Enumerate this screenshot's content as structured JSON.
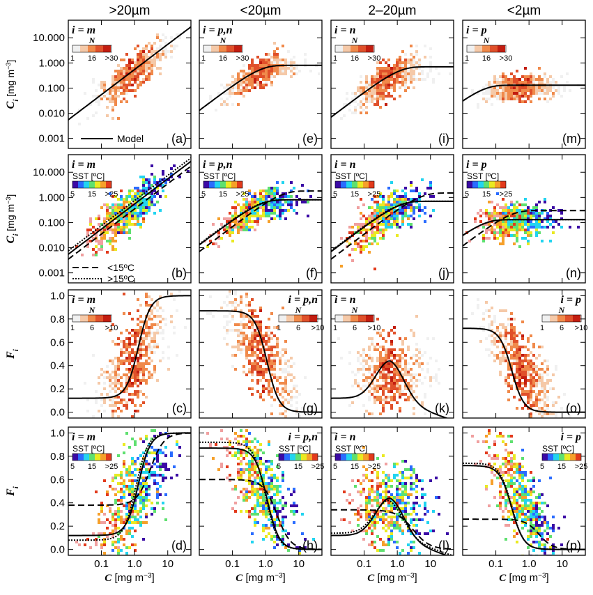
{
  "colors": {
    "density": [
      "#f0f0f0",
      "#f5c9a8",
      "#f08a4b",
      "#e0502a",
      "#c21d10"
    ],
    "sst": [
      "#3b0aa5",
      "#2a6cff",
      "#22d4f0",
      "#5fe070",
      "#eaea22",
      "#f6a02a",
      "#e23a1c",
      "#f0a0a0"
    ]
  },
  "columns": [
    "&gt;20µm",
    "&lt;20µm",
    "2–20µm",
    "&lt;2µm"
  ],
  "column_text": [
    ">20µm",
    "<20µm",
    "2–20µm",
    "<2µm"
  ],
  "row_ylabels": {
    "ci": "C",
    "ci_sub": "i",
    "ci_unit": " [mg m",
    "unit_sup": "−3",
    "unit_close": "]",
    "fi": "F",
    "fi_sub": "i"
  },
  "xlabel": {
    "main": "C",
    "unit": " [mg m",
    "sup": "−3",
    "close": "]"
  },
  "legend_model": "Model",
  "legend_cold": "<15ºC",
  "legend_warm": ">15ºC",
  "n_label": "N",
  "sst_label": "SST [ºC]",
  "chart_data": [
    {
      "type": "scatter",
      "panel": "a",
      "row": 0,
      "col": 0,
      "eq": "i = m",
      "cbar": "N",
      "ticks": [
        "1",
        "16",
        ">30"
      ],
      "yscale": "log",
      "ylim": [
        0.0004,
        50
      ],
      "xlim": [
        0.01,
        50
      ],
      "yticks": [
        "0.001",
        "0.010",
        "0.100",
        "1.000",
        "10.000"
      ],
      "model": {
        "kind": "ci",
        "cm": 1000,
        "D": 0.55
      },
      "center": {
        "x": 0.8,
        "y": 0.5,
        "spread": 0.35,
        "slope": 1.05
      }
    },
    {
      "type": "scatter",
      "panel": "e",
      "row": 0,
      "col": 1,
      "eq": "i = p,n",
      "cbar": "N",
      "ticks": [
        "1",
        "16",
        ">30"
      ],
      "yscale": "log",
      "ylim": [
        0.0004,
        50
      ],
      "xlim": [
        0.01,
        50
      ],
      "model": {
        "kind": "ci",
        "cm": 0.8,
        "D": 1.3
      },
      "center": {
        "x": 0.6,
        "y": 0.3,
        "spread": 0.25,
        "slope": 0.7
      }
    },
    {
      "type": "scatter",
      "panel": "i",
      "row": 0,
      "col": 2,
      "eq": "i = n",
      "cbar": "N",
      "ticks": [
        "1",
        "16",
        ">30"
      ],
      "yscale": "log",
      "ylim": [
        0.0004,
        50
      ],
      "xlim": [
        0.01,
        50
      ],
      "model": {
        "kind": "ci",
        "cm": 0.7,
        "D": 0.7
      },
      "center": {
        "x": 0.5,
        "y": 0.2,
        "spread": 0.35,
        "slope": 0.9
      }
    },
    {
      "type": "scatter",
      "panel": "m",
      "row": 0,
      "col": 3,
      "eq": "i = p",
      "cbar": "N",
      "ticks": [
        "1",
        "16",
        ">30"
      ],
      "yscale": "log",
      "ylim": [
        0.0004,
        50
      ],
      "xlim": [
        0.01,
        50
      ],
      "model": {
        "kind": "ci",
        "cm": 0.13,
        "D": 3.5
      },
      "center": {
        "x": 0.5,
        "y": 0.15,
        "spread": 0.25,
        "slope": 0.4
      }
    },
    {
      "type": "scatter",
      "panel": "b",
      "row": 1,
      "col": 0,
      "eq": "i = m",
      "cbar": "SST",
      "ticks": [
        "5",
        "15",
        ">25"
      ],
      "yscale": "log",
      "ylim": [
        0.0004,
        50
      ],
      "xlim": [
        0.01,
        50
      ],
      "model": {
        "kind": "ci",
        "cm": 1000,
        "D": 0.55
      },
      "cold": {
        "kind": "ci",
        "cm": 1000,
        "D": 0.35
      },
      "warm": {
        "kind": "ci",
        "cm": 1000,
        "D": 0.75
      },
      "center": {
        "x": 0.6,
        "y": 0.25,
        "spread": 0.4,
        "slope": 1.05
      }
    },
    {
      "type": "scatter",
      "panel": "f",
      "row": 1,
      "col": 1,
      "eq": "i = p,n",
      "cbar": "SST",
      "ticks": [
        "5",
        "15",
        ">25"
      ],
      "yscale": "log",
      "ylim": [
        0.0004,
        50
      ],
      "xlim": [
        0.01,
        50
      ],
      "model": {
        "kind": "ci",
        "cm": 0.8,
        "D": 1.3
      },
      "cold": {
        "kind": "ci",
        "cm": 1.8,
        "D": 0.7
      },
      "warm": {
        "kind": "ci",
        "cm": 0.8,
        "D": 1.4
      },
      "center": {
        "x": 0.5,
        "y": 0.2,
        "spread": 0.3,
        "slope": 0.7
      }
    },
    {
      "type": "scatter",
      "panel": "j",
      "row": 1,
      "col": 2,
      "eq": "i = n",
      "cbar": "SST",
      "ticks": [
        "5",
        "15",
        ">25"
      ],
      "yscale": "log",
      "ylim": [
        0.0004,
        50
      ],
      "xlim": [
        0.01,
        50
      ],
      "model": {
        "kind": "ci",
        "cm": 0.7,
        "D": 0.7
      },
      "cold": {
        "kind": "ci",
        "cm": 1.5,
        "D": 0.35
      },
      "warm": {
        "kind": "ci",
        "cm": 0.7,
        "D": 0.75
      },
      "center": {
        "x": 0.4,
        "y": 0.12,
        "spread": 0.4,
        "slope": 0.9
      }
    },
    {
      "type": "scatter",
      "panel": "n",
      "row": 1,
      "col": 3,
      "eq": "i = p",
      "cbar": "SST",
      "ticks": [
        "5",
        "15",
        ">25"
      ],
      "yscale": "log",
      "ylim": [
        0.0004,
        50
      ],
      "xlim": [
        0.01,
        50
      ],
      "model": {
        "kind": "ci",
        "cm": 0.13,
        "D": 3.5
      },
      "cold": {
        "kind": "ci",
        "cm": 0.3,
        "D": 1.2
      },
      "warm": {
        "kind": "ci",
        "cm": 0.13,
        "D": 3.5
      },
      "center": {
        "x": 0.4,
        "y": 0.07,
        "spread": 0.35,
        "slope": 0.4
      }
    },
    {
      "type": "scatter",
      "panel": "c",
      "row": 2,
      "col": 0,
      "eq": "i = m",
      "cbar": "N",
      "ticks": [
        "1",
        "6",
        ">10"
      ],
      "yscale": "linear",
      "ylim": [
        -0.05,
        1.05
      ],
      "xlim": [
        0.01,
        50
      ],
      "yticks": [
        "0.0",
        "0.2",
        "0.4",
        "0.6",
        "0.8",
        "1.0"
      ],
      "model": {
        "kind": "fi",
        "base": 0.12,
        "amp": 0.88,
        "x0": 1.3,
        "w": 0.4,
        "mode": "rise"
      },
      "center": {
        "x": 0.8,
        "y": 0.45,
        "spread": 0.2,
        "slope": 0.35
      }
    },
    {
      "type": "scatter",
      "panel": "g",
      "row": 2,
      "col": 1,
      "eq": "i = p,n",
      "cbar": "N",
      "ticks": [
        "1",
        "6",
        ">10"
      ],
      "yscale": "linear",
      "ylim": [
        -0.05,
        1.05
      ],
      "xlim": [
        0.01,
        50
      ],
      "model": {
        "kind": "fi",
        "base": 0,
        "amp": 0.87,
        "x0": 1.1,
        "w": 0.4,
        "mode": "fall"
      },
      "center": {
        "x": 0.6,
        "y": 0.55,
        "spread": 0.18,
        "slope": -0.35
      }
    },
    {
      "type": "scatter",
      "panel": "k",
      "row": 2,
      "col": 2,
      "eq": "i = n",
      "cbar": "N",
      "ticks": [
        "1",
        "6",
        ">10"
      ],
      "yscale": "linear",
      "ylim": [
        -0.05,
        1.05
      ],
      "xlim": [
        0.01,
        50
      ],
      "model": {
        "kind": "fi",
        "base": 0.12,
        "amp": 0.32,
        "x0": 0.6,
        "w": 0.6,
        "mode": "bump"
      },
      "center": {
        "x": 0.6,
        "y": 0.35,
        "spread": 0.15,
        "slope": 0
      }
    },
    {
      "type": "scatter",
      "panel": "o",
      "row": 2,
      "col": 3,
      "eq": "i = p",
      "cbar": "N",
      "ticks": [
        "1",
        "6",
        ">10"
      ],
      "yscale": "linear",
      "ylim": [
        -0.05,
        1.05
      ],
      "xlim": [
        0.01,
        50
      ],
      "model": {
        "kind": "fi",
        "base": 0,
        "amp": 0.72,
        "x0": 0.3,
        "w": 0.4,
        "mode": "fall"
      },
      "center": {
        "x": 0.5,
        "y": 0.4,
        "spread": 0.15,
        "slope": -0.35
      }
    },
    {
      "type": "scatter",
      "panel": "d",
      "row": 3,
      "col": 0,
      "eq": "i = m",
      "cbar": "SST",
      "ticks": [
        "5",
        "15",
        ">25"
      ],
      "yscale": "linear",
      "ylim": [
        -0.05,
        1.05
      ],
      "xlim": [
        0.01,
        50
      ],
      "model": {
        "kind": "fi",
        "base": 0.12,
        "amp": 0.88,
        "x0": 1.3,
        "w": 0.4,
        "mode": "rise"
      },
      "cold": {
        "kind": "fi",
        "base": 0.38,
        "amp": 0.62,
        "x0": 3,
        "w": 0.45,
        "mode": "rise"
      },
      "warm": {
        "kind": "fi",
        "base": 0.08,
        "amp": 0.92,
        "x0": 1.1,
        "w": 0.4,
        "mode": "rise"
      },
      "center": {
        "x": 0.8,
        "y": 0.45,
        "spread": 0.22,
        "slope": 0.35
      }
    },
    {
      "type": "scatter",
      "panel": "h",
      "row": 3,
      "col": 1,
      "eq": "i = p,n",
      "cbar": "SST",
      "ticks": [
        "5",
        "15",
        ">25"
      ],
      "yscale": "linear",
      "ylim": [
        -0.05,
        1.05
      ],
      "xlim": [
        0.01,
        50
      ],
      "model": {
        "kind": "fi",
        "base": 0,
        "amp": 0.87,
        "x0": 1.1,
        "w": 0.4,
        "mode": "fall"
      },
      "cold": {
        "kind": "fi",
        "base": 0,
        "amp": 0.6,
        "x0": 2.2,
        "w": 0.45,
        "mode": "fall"
      },
      "warm": {
        "kind": "fi",
        "base": 0,
        "amp": 0.92,
        "x0": 1.0,
        "w": 0.4,
        "mode": "fall"
      },
      "center": {
        "x": 0.6,
        "y": 0.55,
        "spread": 0.2,
        "slope": -0.35
      }
    },
    {
      "type": "scatter",
      "panel": "l",
      "row": 3,
      "col": 2,
      "eq": "i = n",
      "cbar": "SST",
      "ticks": [
        "5",
        "15",
        ">25"
      ],
      "yscale": "linear",
      "ylim": [
        -0.05,
        1.05
      ],
      "xlim": [
        0.01,
        50
      ],
      "model": {
        "kind": "fi",
        "base": 0.12,
        "amp": 0.32,
        "x0": 0.6,
        "w": 0.6,
        "mode": "bump"
      },
      "cold": {
        "kind": "fi",
        "base": 0.34,
        "amp": 0,
        "x0": 1,
        "w": 0.6,
        "mode": "flat",
        "drop": 3
      },
      "warm": {
        "kind": "fi",
        "base": 0.14,
        "amp": 0.28,
        "x0": 0.55,
        "w": 0.6,
        "mode": "bump"
      },
      "center": {
        "x": 0.6,
        "y": 0.38,
        "spread": 0.18,
        "slope": 0
      }
    },
    {
      "type": "scatter",
      "panel": "p",
      "row": 3,
      "col": 3,
      "eq": "i = p",
      "cbar": "SST",
      "ticks": [
        "5",
        "15",
        ">25"
      ],
      "yscale": "linear",
      "ylim": [
        -0.05,
        1.05
      ],
      "xlim": [
        0.01,
        50
      ],
      "model": {
        "kind": "fi",
        "base": 0,
        "amp": 0.72,
        "x0": 0.3,
        "w": 0.4,
        "mode": "fall"
      },
      "cold": {
        "kind": "fi",
        "base": 0,
        "amp": 0.26,
        "x0": 2,
        "w": 0.45,
        "mode": "fall"
      },
      "warm": {
        "kind": "fi",
        "base": 0,
        "amp": 0.74,
        "x0": 0.3,
        "w": 0.4,
        "mode": "fall"
      },
      "center": {
        "x": 0.5,
        "y": 0.45,
        "spread": 0.18,
        "slope": -0.35
      }
    }
  ],
  "xticks": [
    "0.1",
    "1.0",
    "10"
  ]
}
